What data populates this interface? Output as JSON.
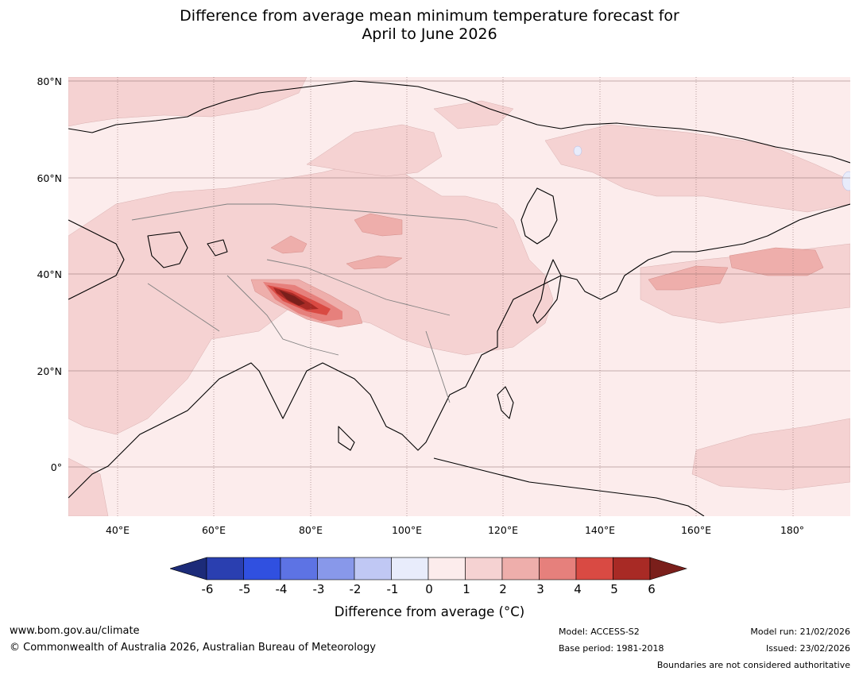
{
  "title_line1": "Difference from average mean minimum temperature forecast for",
  "title_line2": "April to June 2026",
  "lat_labels": [
    "80°N",
    "60°N",
    "40°N",
    "20°N",
    "0°"
  ],
  "lon_labels": [
    "40°E",
    "60°E",
    "80°E",
    "100°E",
    "120°E",
    "140°E",
    "160°E",
    "180°"
  ],
  "colorbar": {
    "ticks": [
      "-6",
      "-5",
      "-4",
      "-3",
      "-2",
      "-1",
      "0",
      "1",
      "2",
      "3",
      "4",
      "5",
      "6"
    ],
    "colors": [
      "#1c2b79",
      "#2a3fb0",
      "#3050e0",
      "#5d73e4",
      "#8898ea",
      "#c0c8f4",
      "#e8ecfb",
      "#fcecec",
      "#f5d2d2",
      "#eeaeab",
      "#e6807c",
      "#d94a43",
      "#a82a25",
      "#7a1f1b"
    ],
    "label": "Difference from average (°C)"
  },
  "footer": {
    "website": "www.bom.gov.au/climate",
    "copyright": "© Commonwealth of Australia 2026, Australian Bureau of Meteorology",
    "model": "Model: ACCESS-S2",
    "base_period": "Base period: 1981-2018",
    "model_run": "Model run: 21/02/2026",
    "issued": "Issued: 23/02/2026",
    "disclaimer": "Boundaries are not considered authoritative"
  }
}
